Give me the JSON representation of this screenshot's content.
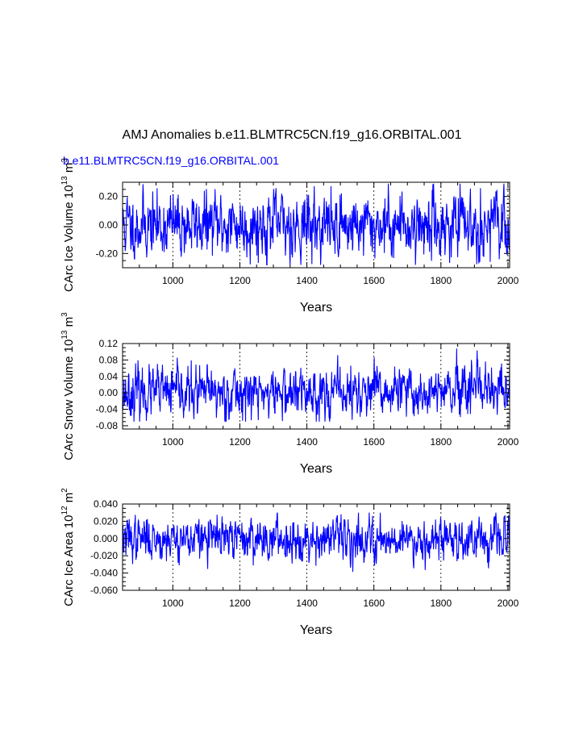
{
  "figure": {
    "title": "AMJ Anomalies b.e11.BLMTRC5CN.f19_g16.ORBITAL.001",
    "run_label": "b.e11.BLMTRC5CN.f19_g16.ORBITAL.001",
    "run_label_color": "#0000ff",
    "line_color": "#0000ff"
  },
  "chart_data": [
    {
      "type": "line",
      "id": "ice-volume",
      "ylabel_main": "CArc Ice Volume 10",
      "ylabel_exp1": "13",
      "ylabel_unit": " m",
      "ylabel_exp2": "3",
      "xlabel": "Years",
      "xlim": [
        850,
        2005
      ],
      "ylim": [
        -0.3,
        0.3
      ],
      "xticks": [
        1000,
        1200,
        1400,
        1600,
        1800,
        2000
      ],
      "xtick_labels": [
        "1000",
        "1200",
        "1400",
        "1600",
        "1800",
        "2000"
      ],
      "yticks": [
        -0.2,
        0.0,
        0.2
      ],
      "ytick_labels": [
        "-0.20",
        "0.00",
        "0.20"
      ],
      "grid_x": true,
      "series": [
        {
          "name": "b.e11.BLMTRC5CN.f19_g16.ORBITAL.001",
          "x_start": 850,
          "x_end": 2005,
          "amplitude": 0.11,
          "extremes_max": 0.29,
          "extremes_min": -0.28,
          "seed": 11
        }
      ]
    },
    {
      "type": "line",
      "id": "snow-volume",
      "ylabel_main": "CArc Snow Volume 10",
      "ylabel_exp1": "13",
      "ylabel_unit": " m",
      "ylabel_exp2": "3",
      "xlabel": "Years",
      "xlim": [
        850,
        2005
      ],
      "ylim": [
        -0.088,
        0.12
      ],
      "xticks": [
        1000,
        1200,
        1400,
        1600,
        1800,
        2000
      ],
      "xtick_labels": [
        "1000",
        "1200",
        "1400",
        "1600",
        "1800",
        "2000"
      ],
      "yticks": [
        -0.08,
        -0.04,
        0.0,
        0.04,
        0.08,
        0.12
      ],
      "ytick_labels": [
        "-0.08",
        "-0.04",
        "0.00",
        "0.04",
        "0.08",
        "0.12"
      ],
      "grid_x": true,
      "series": [
        {
          "name": "b.e11.BLMTRC5CN.f19_g16.ORBITAL.001",
          "x_start": 850,
          "x_end": 2005,
          "amplitude": 0.03,
          "extremes_max": 0.11,
          "extremes_min": -0.07,
          "seed": 23
        }
      ]
    },
    {
      "type": "line",
      "id": "ice-area",
      "ylabel_main": "CArc Ice Area 10",
      "ylabel_exp1": "12",
      "ylabel_unit": " m",
      "ylabel_exp2": "2",
      "xlabel": "Years",
      "xlim": [
        850,
        2005
      ],
      "ylim": [
        -0.06,
        0.04
      ],
      "xticks": [
        1000,
        1200,
        1400,
        1600,
        1800,
        2000
      ],
      "xtick_labels": [
        "1000",
        "1200",
        "1400",
        "1600",
        "1800",
        "2000"
      ],
      "yticks": [
        -0.06,
        -0.04,
        -0.02,
        0.0,
        0.02,
        0.04
      ],
      "ytick_labels": [
        "-0.060",
        "-0.040",
        "-0.020",
        "0.000",
        "0.020",
        "0.040"
      ],
      "grid_x": true,
      "series": [
        {
          "name": "b.e11.BLMTRC5CN.f19_g16.ORBITAL.001",
          "x_start": 850,
          "x_end": 2005,
          "amplitude": 0.012,
          "extremes_max": 0.03,
          "extremes_min": -0.048,
          "seed": 37
        }
      ]
    }
  ]
}
